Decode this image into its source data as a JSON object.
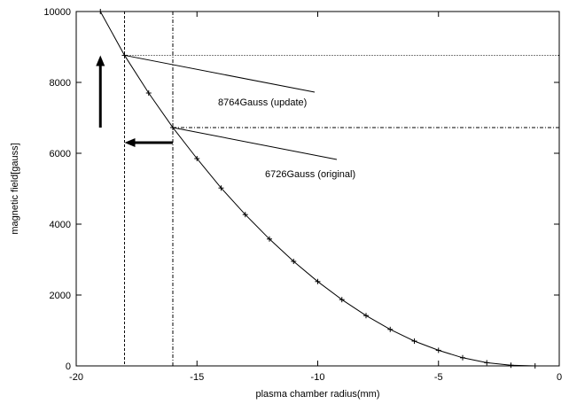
{
  "chart_data": {
    "type": "line",
    "title": "",
    "xlabel": "plasma chamber radius(mm)",
    "ylabel": "magnetic field[gauss]",
    "xlim": [
      -20,
      0
    ],
    "ylim": [
      0,
      10000
    ],
    "xticks": [
      -20,
      -15,
      -10,
      -5,
      0
    ],
    "yticks": [
      0,
      2000,
      4000,
      6000,
      8000,
      10000
    ],
    "grid": false,
    "series": [
      {
        "name": "",
        "marker": "plus",
        "x": [
          -19,
          -18,
          -17,
          -16,
          -15,
          -14,
          -13,
          -12,
          -11,
          -10,
          -9,
          -8,
          -7,
          -6,
          -5,
          -4,
          -3,
          -2,
          -1
        ],
        "y": [
          10000,
          8764,
          7700,
          6726,
          5850,
          5020,
          4270,
          3580,
          2950,
          2380,
          1870,
          1420,
          1030,
          700,
          440,
          230,
          90,
          20,
          0
        ]
      }
    ],
    "reference_lines": {
      "vertical": [
        -18,
        -16
      ],
      "horizontal": [
        8764,
        6726
      ]
    },
    "annotations": [
      {
        "text": "8764Gauss (update)",
        "x": -18,
        "y": 8764
      },
      {
        "text": "6726Gauss (original)",
        "x": -16,
        "y": 6726
      }
    ],
    "arrows": [
      {
        "direction": "up",
        "x": -19,
        "from": 6726,
        "to": 8764
      },
      {
        "direction": "left",
        "y": 6300,
        "from": -16,
        "to": -18
      }
    ]
  }
}
